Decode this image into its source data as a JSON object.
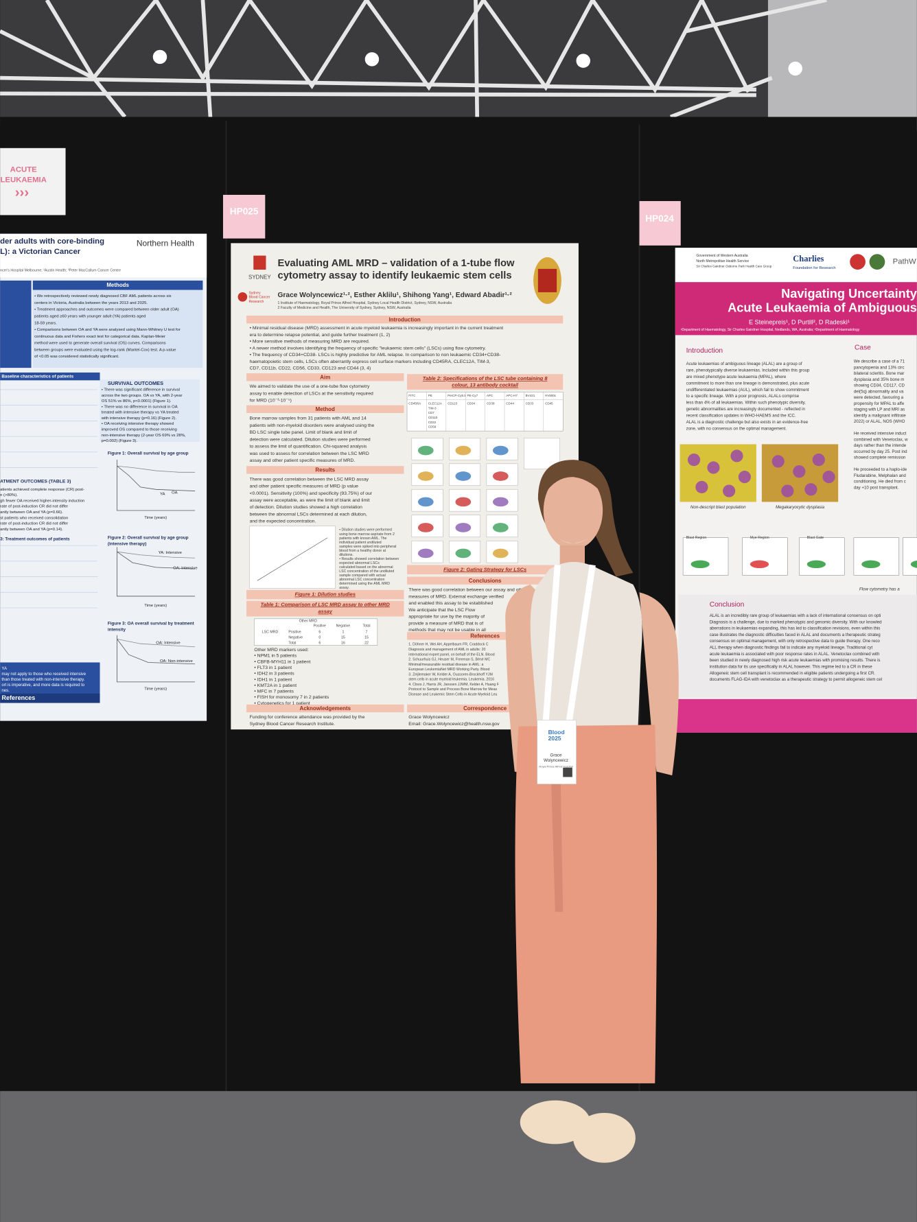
{
  "signs": {
    "left": {
      "lines": [
        "ACUTE",
        "LEUKAEMIA"
      ],
      "arrows": "›››"
    },
    "center": "HP025",
    "right": "HP024"
  },
  "left_poster": {
    "org": "Northern Health",
    "title": [
      "der adults with core-binding",
      "L): a Victorian Cancer"
    ],
    "affiliation": "ncer's Hospital Melbourne; ²Austin Health; ³Peter MacCallum Cancer Centre",
    "methods_heading": "Methods",
    "methods": [
      "• We retrospectively reviewed newly diagnosed CBF AML patients across six",
      "centers in Victoria, Australia between the years 2013 and 2025.",
      "• Treatment approaches and outcomes were compared between older adult (OA)",
      "patients aged ≥60 years with younger adult (YA) patients aged",
      "18-59 years.",
      "• Comparisons between OA and YA were analysed using Mann-Whitney U test for",
      "continuous data and Fishers exact test for categorical data. Kaplan-Meier",
      "method were used to generate overall survival (OS) curves. Comparisons",
      "between groups were evaluated using the log-rank (Mantel-Cox) test. A p-value",
      "of <0.05 was considered statistically significant."
    ],
    "baseline_heading": "Baseline characteristics of patients",
    "survival_heading": "SURVIVAL OUTCOMES",
    "survival": [
      "• There was significant difference in survival",
      "across the two groups. OA vs YA, with 2-year",
      "OS 51% vs 86%, p<0.0001) (Figure 1).",
      "• There was no difference in survival in OA",
      "treated with intensive therapy vs YA treated",
      "with intensive therapy (p=0.16) (Figure 2).",
      "• OA receiving intensive therapy showed",
      "improved OS compared to those receiving",
      "non-intensive therapy (2-year OS 69% vs 28%,",
      "p=0.002) (Figure 3)."
    ],
    "treatment_heading": "ATMENT OUTCOMES (TABLE 3)",
    "treatment": [
      "atients achieved complete response (CR) post-",
      "n (>80%).",
      "gh fewer OA received higher-intensity induction",
      "rate of post-induction CR did not differ",
      "antly between OA and YA (p=0.66).",
      "st patients who received consolidation",
      "rate of post-induction CR did not differ",
      "antly between OA and YA (p=0.14)."
    ],
    "table3_heading": "3: Treatment outcomes of patients",
    "figures": [
      "Figure 1: Overall survival by age group",
      "Figure 2: Overall survival by age group",
      "(intensive therapy)",
      "Figure 3: OA overall survival by treatment",
      "intensity"
    ],
    "curve_labels": [
      "YA",
      "OA",
      "YA: Intensive",
      "OA: Intensive",
      "OA: Intensive",
      "OA: Non-intensive"
    ],
    "axis_label": "Time (years)",
    "footer": [
      "YA",
      "may not apply to those who received intensive",
      "than those treated with non-intensive therapy.",
      "ort is imperative, and more data is required to",
      "nes."
    ],
    "references": "References"
  },
  "center_poster": {
    "university": "SYDNEY",
    "institute": [
      "Sydney",
      "Blood Cancer",
      "Research"
    ],
    "title": [
      "Evaluating AML MRD – validation of a 1-tube flow",
      "cytometry assay to identify leukaemic stem cells"
    ],
    "authors": "Grace Wolyncewicz¹·², Esther Aklilu¹, Shihong Yang¹, Edward Abadir¹·²",
    "affiliations": [
      "1 Institute of Haematology, Royal Prince Alfred Hospital, Sydney Local Health District, Sydney, NSW, Australia",
      "2 Faculty of Medicine and Health, The University of Sydney, Sydney, NSW, Australia"
    ],
    "introduction": {
      "heading": "Introduction",
      "lines": [
        "• Minimal residual disease (MRD) assessment in acute myeloid leukaemia is increasingly important in the current treatment",
        "   era to determine relapse potential, and guide further treatment (1, 2)",
        "• More sensitive methods of measuring MRD are required.",
        "• A newer method involves identifying the frequency of specific \"leukaemic stem cells\" (LSCs) using flow cytometry.",
        "• The frequency of CD34+CD38- LSCs is highly predictive for AML relapse. In comparison to non leukaemic CD34+CD38-",
        "   haematopoietic stem cells, LSCs often aberrantly express cell surface markers including CD45RA, CLEC12A, TIM-3,",
        "   CD7, CD11b, CD22, CD56, CD33, CD123 and CD44 (3, 4)"
      ]
    },
    "aim": {
      "heading": "Aim",
      "lines": [
        "We aimed to validate the use of a one-tube flow cytometry",
        "assay to enable detection of LSCs at the sensitivity required",
        "for MRD (10⁻³-10⁻⁵)"
      ]
    },
    "method": {
      "heading": "Method",
      "lines": [
        "Bone marrow samples from 31 patients with AML and 14",
        "patients with non-myeloid disorders were analysed using the",
        "BD LSC single tube panel. Limit of blank and limit of",
        "detection were calculated. Dilution studies were performed",
        "to assess the limit of quantification. Chi-squared analysis",
        "was used to assess for correlation between the LSC MRD",
        "assay and other patient specific measures of MRD."
      ]
    },
    "results": {
      "heading": "Results",
      "lines": [
        "There was good correlation between the LSC MRD assay",
        "and other patient specific measures of MRD (p value",
        "<0.0001). Sensitivity (100%) and specificity (93.75%) of our",
        "assay were acceptable, as were the limit of blank and limit",
        "of detection. Dilution studies showed a high correlation",
        "between the abnormal LSCs determined at each dilution,",
        "and the expected concentration."
      ]
    },
    "figure1_note": [
      "• Dilution studies were performed",
      "  using bone marrow aspirate from 2",
      "  patients with known AML. The",
      "  individual patient undiluted",
      "  samples were spiked into peripheral",
      "  blood from a healthy donor at",
      "  dilutions.",
      "• Results showed correlation between",
      "  expected abnormal LSCs",
      "  calculated based on the abnormal",
      "  LSC concentration of the undiluted",
      "  sample compared with actual",
      "  abnormal LSC concentration",
      "  determined using the AML MRD",
      "  assay."
    ],
    "figure1_caption": "Figure 1: Dilution studies",
    "table1_caption": [
      "Table 1: Comparison of LSC MRD assay to other MRD",
      "assay"
    ],
    "table1": {
      "header": [
        "Other MRD",
        "Positive",
        "Negative",
        "Total"
      ],
      "row_group": "LSC MRD",
      "rows": [
        [
          "Positive",
          6,
          1,
          7
        ],
        [
          "Negative",
          0,
          15,
          15
        ],
        [
          "Total",
          6,
          16,
          22
        ]
      ]
    },
    "markers": [
      "Other MRD markers used:",
      "• NPM1 in 5 patients",
      "• CBFB-MYH11 in 1 patient",
      "• FLT3 in 1 patient",
      "• IDH2 in 3 patients",
      "• IDH1 in 1 patient",
      "• KMT2A in 1 patient",
      "• MFC in 7 patients",
      "• FISH for monosomy 7 in 2 patients",
      "• Cytogenetics for 1 patient"
    ],
    "table2_caption": [
      "Table 2: Specifications of the LSC tube containing 8",
      "colour, 13 antibody cocktail"
    ],
    "table2": {
      "header": [
        "FITC",
        "PE",
        "PerCP-Cy5.5",
        "PE-Cy7",
        "APC",
        "APC-H7",
        "BV421",
        "HV500c"
      ],
      "row": [
        [
          "CD45RA"
        ],
        [
          "CLEC12A",
          "TIM-3",
          "CD7",
          "CD11b",
          "CD22",
          "CD56"
        ],
        [
          "CD123"
        ],
        [
          "CD34"
        ],
        [
          "CD38"
        ],
        [
          "CD44"
        ],
        [
          "CD33"
        ],
        [
          "CD45"
        ]
      ]
    },
    "figure2_caption": "Figure 2: Gating Strategy for LSCs",
    "conclusions": {
      "heading": "Conclusions",
      "lines": [
        "There was good correlation between our assay and other",
        "measures of MRD. External exchange verified",
        "and enabled this assay to be established",
        "We anticipate that the LSC Flow",
        "appropriate for use by the majority of",
        "provide a measure of MRD that is of",
        "methods that may not be usable in all"
      ]
    },
    "references": {
      "heading": "References",
      "lines": [
        "1. Döhner H, Wei AH, Appelbaum FR, Craddock C",
        "   Diagnosis and management of AML in adults: 20",
        "   international expert panel, on behalf of the ELN. Blood",
        "2. Schuurhuis GJ, Heuser M, Freeman S, Béné MC",
        "   Minimal/measurable residual disease in AML: a",
        "   European LeukemiaNet MRD Working Party. Blood",
        "3. Zeijlemaker W, Kelder A, Oussoren-Brockhoff YJM",
        "   stem cells in acute myeloid leukemia. Leukemia. 2016",
        "4. Cloos J, Harris JR, Janssen JJWM, Kelder A, Huang F",
        "   Protocol to Sample and Process Bone Marrow for Meas",
        "   Disease and Leukemic Stem Cells in Acute Myeloid Leu"
      ]
    },
    "acknowledgements": {
      "heading": "Acknowledgements",
      "lines": [
        "Funding for conference attendance was provided by the",
        "Sydney Blood Cancer Research Institute."
      ]
    },
    "correspondence": {
      "heading": "Correspondence",
      "lines": [
        "Grace Wolyncewicz",
        "Email: Grace.Wolyncewicz@health.nsw.gov"
      ]
    }
  },
  "right_poster": {
    "logos": [
      "Government of Western Australia",
      "North Metropolitan Health Service",
      "Sir Charles Gairdner Osborne Park Health Care Group",
      "Charlies",
      "Foundation for Research",
      "PathW"
    ],
    "title": [
      "Navigating Uncertainty",
      "Acute Leukaemia of Ambiguous"
    ],
    "authors": "E Steinepreis¹, D Purtill², D Radeski¹",
    "affiliation": "¹Department of Haematology, Sir Charles Gairdner Hospital, Nedlands, WA, Australia; ²Department of Haematology",
    "introduction": {
      "heading": "Introduction",
      "lines": [
        "Acute leukaemias of ambiguous lineage (ALAL) are a group of",
        "rare, phenotypically diverse leukaemias. Included within this group",
        "are mixed phenotype acute leukaemia (MPAL), where",
        "commitment to more than one lineage is demonstrated, plus acute",
        "undifferentiated leukaemias (AUL), which fail to show commitment",
        "to a specific lineage. With a poor prognosis, ALALs comprise",
        "less than 4% of all leukaemias. Within such phenotypic diversity,",
        "genetic abnormalities are increasingly documented - reflected in",
        "recent classification updates in WHO-HAEMS and the ICC.",
        "ALAL is a diagnostic challenge but also exists in an evidence-free",
        "zone, with no consensus on the optimal management."
      ]
    },
    "case": {
      "heading": "Case",
      "lines": [
        "We describe a case of a 71",
        "pancytopenia and 13% circ",
        "bilateral scleritis. Bone mar",
        "dysplasia and 35% bone m",
        "showing CD34, CD117, CD",
        "del(5q) abnormality and va",
        "were detected, favouring a",
        "propensity for MPAL to affe",
        "staging with LP and MRI as",
        "identify a malignant infiltrate",
        "2022) or ALAL, NOS (WHO",
        "",
        "He received intensive induct",
        "combined with Venetoclax, w",
        "days rather than the intende",
        "occurred by day 25. Post ind",
        "showed complete remission",
        "",
        "He proceeded to a haplo-ide",
        "Fludarabine, Melphalan and",
        "conditioning. He died from c",
        "day +10 post transplant."
      ]
    },
    "image_captions": [
      "Non-descript blast population",
      "Megakaryocytic dysplasia"
    ],
    "flow_labels": [
      "Blast Region",
      "Mye Region",
      "Blast Gate"
    ],
    "flow_caption": "Flow cytometry has a",
    "conclusion": {
      "heading": "Conclusion",
      "lines": [
        "ALAL is an incredibly rare group of leukaemias with a lack of international consensus on opti",
        "Diagnosis is a challenge, due to marked phenotypic and genomic diversity. With our knowled",
        "aberrations in leukaemias expanding, this has led to classification revisions, even within this",
        "case illustrates the diagnostic difficulties faced in ALAL and documents a therapeutic strateg",
        "consensus on optimal management, with only retrospective data to guide therapy. One reco",
        "ALL therapy when diagnostic findings fail to indicate any myeloid lineage. Traditional cyt",
        "acute leukaemia is associated with poor response rates in ALAL. Venetoclax combined with",
        "been studied in newly diagnosed high risk acute leukaemias with promising results. There is",
        "institution data for its use specifically in ALAL however. This regime led to a CR in these",
        "Allogeneic stem cell transplant is recommended in eligible patients undergoing a first CR.",
        "documents FLAG-IDA with venetoclax as a therapeutic strategy to permit allogeneic stem cel"
      ]
    }
  },
  "badge": {
    "event": [
      "Blood",
      "2025"
    ],
    "name": [
      "Grace",
      "Wolyncewicz"
    ],
    "org": "Royal Prince Alfred Hospital"
  }
}
